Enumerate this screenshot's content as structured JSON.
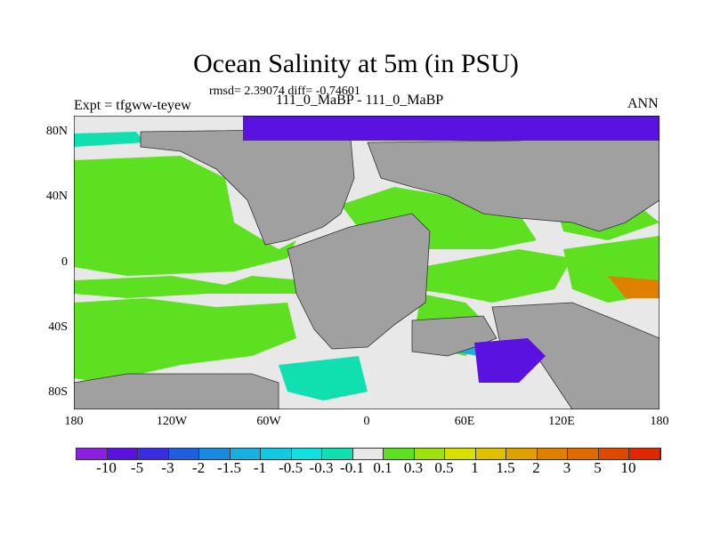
{
  "title": "Ocean Salinity at 5m (in PSU)",
  "stats": "rmsd= 2.39074 diff= -0.74601",
  "left_label": "Expt = tfgww-teyew",
  "center_label": "111_0_MaBP - 111_0_MaBP",
  "right_label": "ANN",
  "lat_labels": [
    "80N",
    "40N",
    "0",
    "40S",
    "80S"
  ],
  "lon_labels": [
    "180",
    "120W",
    "60W",
    "0",
    "60E",
    "120E",
    "180"
  ],
  "colorbar": {
    "labels": [
      "-10",
      "-5",
      "-3",
      "-2",
      "-1.5",
      "-1",
      "-0.5",
      "-0.3",
      "-0.1",
      "0.1",
      "0.3",
      "0.5",
      "1",
      "1.5",
      "2",
      "3",
      "5",
      "10"
    ],
    "colors": [
      "#8a1fe0",
      "#5a12e0",
      "#3a2ce0",
      "#1f5ee0",
      "#1a8ae0",
      "#18b0e0",
      "#10c8e0",
      "#10e0e0",
      "#10e0b0",
      "#e8e8e8",
      "#5de020",
      "#a0e010",
      "#d8e000",
      "#e0c000",
      "#e0a000",
      "#e08000",
      "#e06a00",
      "#e04800",
      "#e02800"
    ]
  },
  "colors": {
    "land": "#a0a0a0",
    "neutral": "#e8e8e8",
    "green": "#5de020",
    "purple": "#5a12e0",
    "cyan": "#10e0b0"
  }
}
